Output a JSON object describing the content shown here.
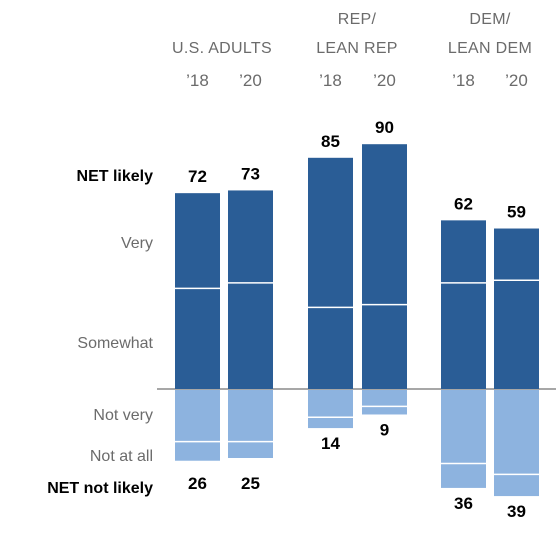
{
  "chart_data": {
    "type": "bar",
    "subtype": "diverging-stacked",
    "groups": [
      {
        "title_lines": [
          "",
          "U.S. ADULTS"
        ],
        "years": [
          "’18",
          "’20"
        ]
      },
      {
        "title_lines": [
          "REP/",
          "LEAN REP"
        ],
        "years": [
          "’18",
          "’20"
        ]
      },
      {
        "title_lines": [
          "DEM/",
          "LEAN DEM"
        ],
        "years": [
          "’18",
          "’20"
        ]
      }
    ],
    "row_labels": {
      "net_likely": "NET likely",
      "very": "Very",
      "somewhat": "Somewhat",
      "not_very": "Not very",
      "not_at_all": "Not at all",
      "net_not_likely": "NET not likely"
    },
    "bars": [
      {
        "group": 0,
        "year": "’18",
        "net_likely": 72,
        "very": 35,
        "somewhat": 37,
        "not_very": 19,
        "not_at_all": 7,
        "net_not_likely": 26
      },
      {
        "group": 0,
        "year": "’20",
        "net_likely": 73,
        "very": 34,
        "somewhat": 39,
        "not_very": 19,
        "not_at_all": 6,
        "net_not_likely": 25
      },
      {
        "group": 1,
        "year": "’18",
        "net_likely": 85,
        "very": 55,
        "somewhat": 30,
        "not_very": 10,
        "not_at_all": 4,
        "net_not_likely": 14
      },
      {
        "group": 1,
        "year": "’20",
        "net_likely": 90,
        "very": 59,
        "somewhat": 31,
        "not_very": 6,
        "not_at_all": 3,
        "net_not_likely": 9
      },
      {
        "group": 2,
        "year": "’18",
        "net_likely": 62,
        "very": 23,
        "somewhat": 39,
        "not_very": 27,
        "not_at_all": 9,
        "net_not_likely": 36
      },
      {
        "group": 2,
        "year": "’20",
        "net_likely": 59,
        "very": 19,
        "somewhat": 40,
        "not_very": 31,
        "not_at_all": 8,
        "net_not_likely": 39
      }
    ],
    "colors": {
      "likely": "#2a5d96",
      "not_likely": "#8db3df",
      "divider": "#ffffff",
      "baseline": "#8a8a8a"
    }
  }
}
